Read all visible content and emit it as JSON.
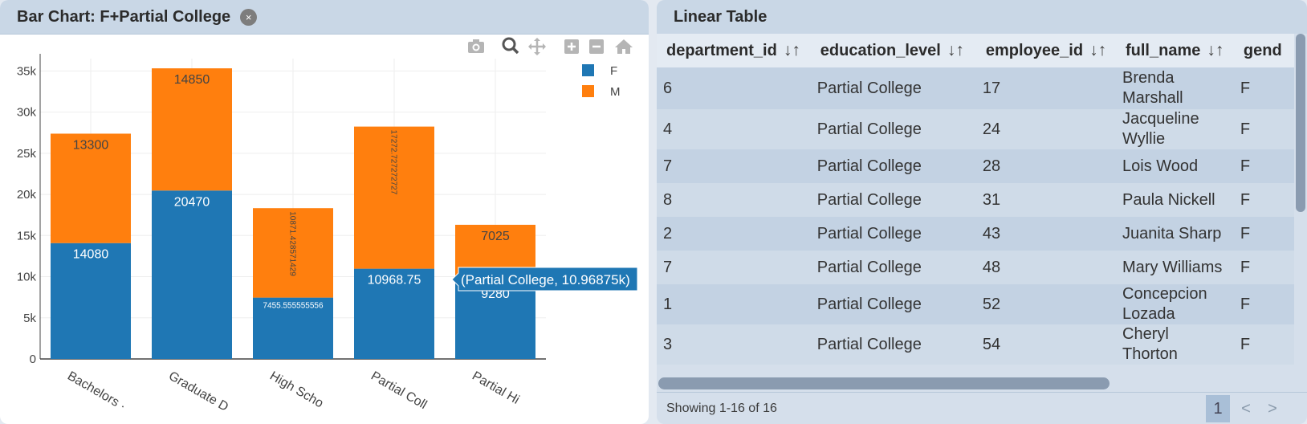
{
  "chart_panel": {
    "title": "Bar Chart: F+Partial College",
    "close_label": "×",
    "toolbar": [
      "camera-icon",
      "zoom-icon",
      "pan-icon",
      "zoom-in-icon",
      "zoom-out-icon",
      "home-icon"
    ],
    "tooltip": "(Partial College, 10.96875k)"
  },
  "chart_data": {
    "type": "bar",
    "stacked": true,
    "categories": [
      "Bachelors Degree",
      "Graduate Degree",
      "High School Degree",
      "Partial College",
      "Partial High School"
    ],
    "visible_category_labels": [
      "Bachelors ·",
      "Graduate D",
      "High Scho",
      "Partial Coll",
      "Partial Hi"
    ],
    "series": [
      {
        "name": "F",
        "color": "#1f77b4",
        "values": [
          14080,
          20470,
          7455.555555556,
          10968.75,
          9280
        ],
        "labels": [
          "14080",
          "20470",
          "7455.555555556",
          "10968.75",
          "9280"
        ]
      },
      {
        "name": "M",
        "color": "#ff7f0e",
        "values": [
          13300,
          14850,
          10871.428571429,
          17272.727272727,
          7025
        ],
        "labels": [
          "13300",
          "14850",
          "10871.428571429",
          "17272.727272727",
          "7025"
        ]
      }
    ],
    "ylim": [
      0,
      36500
    ],
    "yticks": [
      0,
      5000,
      10000,
      15000,
      20000,
      25000,
      30000,
      35000
    ],
    "ytick_labels": [
      "0",
      "5k",
      "10k",
      "15k",
      "20k",
      "25k",
      "30k",
      "35k"
    ],
    "grid": true,
    "legend_placement": "top-right"
  },
  "table_panel": {
    "title": "Linear Table",
    "columns": [
      "department_id",
      "education_level",
      "employee_id",
      "full_name",
      "gend"
    ],
    "sort_icon": "↓↑",
    "rows": [
      {
        "department_id": "6",
        "education_level": "Partial College",
        "employee_id": "17",
        "name1": "Brenda",
        "name2": "Marshall",
        "gender": "F"
      },
      {
        "department_id": "4",
        "education_level": "Partial College",
        "employee_id": "24",
        "name1": "Jacqueline",
        "name2": "Wyllie",
        "gender": "F"
      },
      {
        "department_id": "7",
        "education_level": "Partial College",
        "employee_id": "28",
        "name1": "Lois Wood",
        "name2": "",
        "gender": "F"
      },
      {
        "department_id": "8",
        "education_level": "Partial College",
        "employee_id": "31",
        "name1": "Paula Nickell",
        "name2": "",
        "gender": "F"
      },
      {
        "department_id": "2",
        "education_level": "Partial College",
        "employee_id": "43",
        "name1": "Juanita Sharp",
        "name2": "",
        "gender": "F"
      },
      {
        "department_id": "7",
        "education_level": "Partial College",
        "employee_id": "48",
        "name1": "Mary Williams",
        "name2": "",
        "gender": "F"
      },
      {
        "department_id": "1",
        "education_level": "Partial College",
        "employee_id": "52",
        "name1": "Concepcion",
        "name2": "Lozada",
        "gender": "F"
      },
      {
        "department_id": "3",
        "education_level": "Partial College",
        "employee_id": "54",
        "name1": "Cheryl",
        "name2": "Thorton",
        "gender": "F"
      }
    ],
    "footer": "Showing 1-16 of 16",
    "pagination": {
      "current": "1",
      "prev": "<",
      "next": ">"
    }
  }
}
